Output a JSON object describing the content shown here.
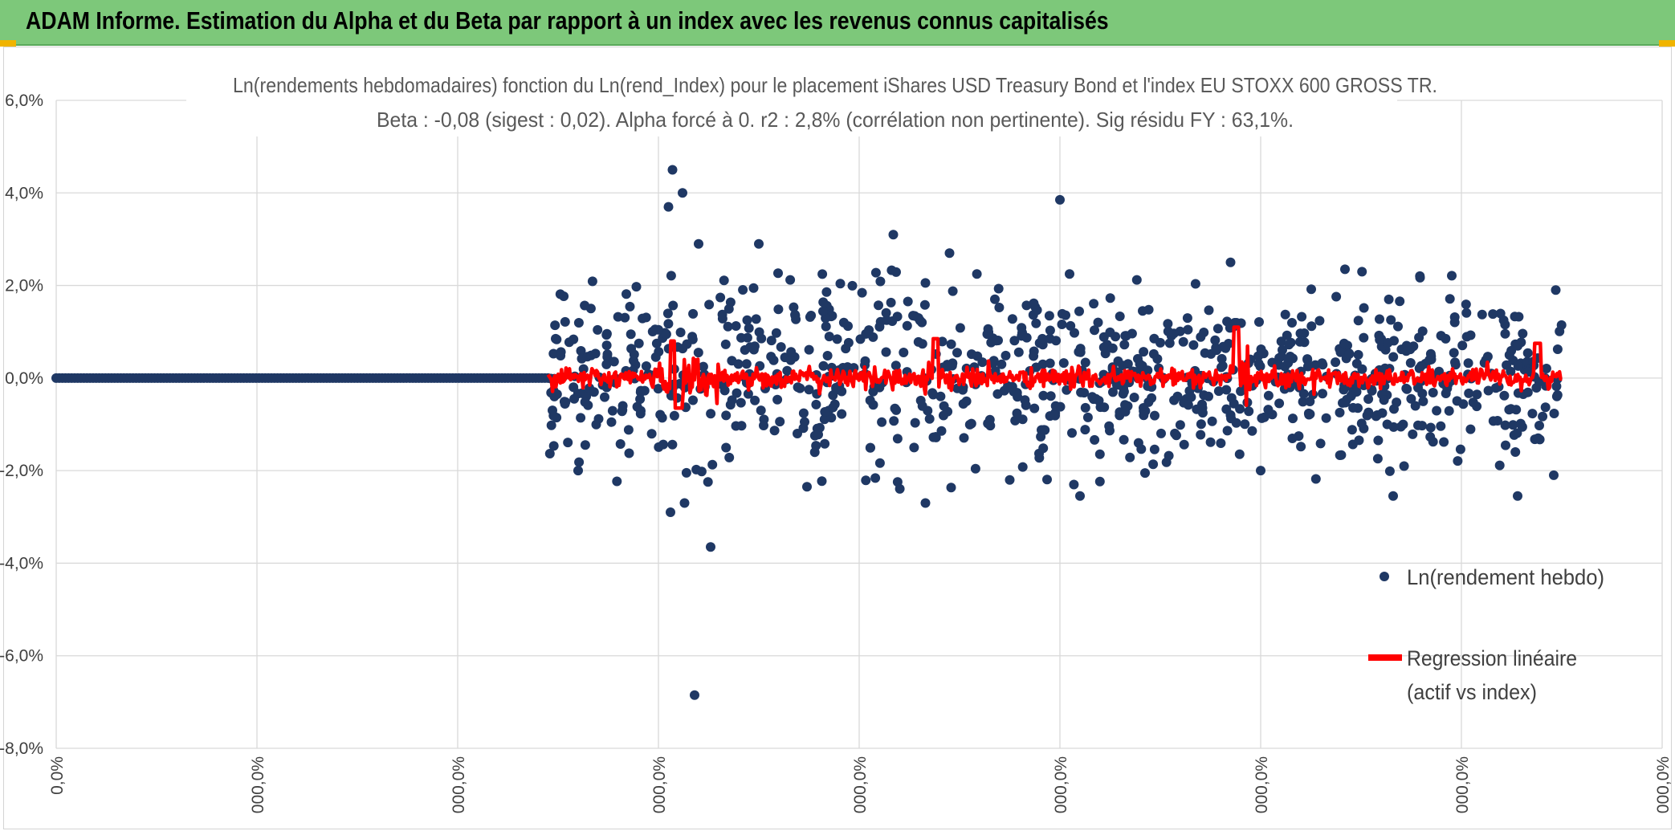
{
  "banner": {
    "title": "ADAM Informe. Estimation du Alpha et du Beta par rapport à un index avec les revenus connus capitalisés"
  },
  "chart_data": {
    "type": "scatter",
    "title": "Ln(rendements hebdomadaires) fonction du Ln(rend_Index) pour le placement iShares USD Treasury Bond et l'index EU STOXX 600 GROSS TR.",
    "subtitle": "Beta : -0,08 (sigest : 0,02). Alpha forcé à 0. r2 : 2,8% (corrélation non pertinente). Sig résidu FY : 63,1%.",
    "y_ticks": [
      "6,0%",
      "4,0%",
      "2,0%",
      "0,0%",
      "-2,0%",
      "-4,0%",
      "-6,0%",
      "-8,0%"
    ],
    "x_ticks": [
      "0,0%",
      "000,0%",
      "000,0%",
      "000,0%",
      "000,0%",
      "000,0%",
      "000,0%",
      "000,0%",
      "000,0%"
    ],
    "ylim": [
      -8,
      6
    ],
    "grid": true,
    "legend_position": "right",
    "series": [
      {
        "name": "Ln(rendement hebdo)",
        "color": "#1f3864",
        "marker": "dot"
      },
      {
        "name": "Regression linéaire (actif vs index)",
        "legend_lines": [
          "Regression linéaire",
          "(actif vs index)"
        ],
        "color": "#ff0000",
        "marker": "line"
      }
    ],
    "notes": {
      "x_domain_index": [
        0,
        8
      ],
      "flat_segment_end": 2.45,
      "scatter_end": 7.5,
      "point_count": 990,
      "dense_spread_pct": 0.9,
      "extreme_points": [
        [
          3.07,
          4.5
        ],
        [
          3.12,
          4.0
        ],
        [
          3.05,
          3.7
        ],
        [
          3.2,
          2.9
        ],
        [
          4.17,
          3.1
        ],
        [
          5.0,
          3.85
        ],
        [
          4.45,
          2.7
        ],
        [
          3.18,
          -6.85
        ],
        [
          3.26,
          -3.65
        ],
        [
          3.06,
          -2.9
        ],
        [
          3.13,
          -2.7
        ],
        [
          3.5,
          2.9
        ],
        [
          5.85,
          2.5
        ],
        [
          6.0,
          -2.0
        ],
        [
          4.33,
          -2.7
        ],
        [
          7.28,
          -2.55
        ],
        [
          6.42,
          2.35
        ],
        [
          2.6,
          -2.0
        ],
        [
          7.47,
          1.9
        ],
        [
          7.46,
          -2.1
        ],
        [
          4.75,
          -2.2
        ],
        [
          5.1,
          -2.55
        ],
        [
          6.66,
          -2.55
        ],
        [
          3.74,
          -2.35
        ]
      ]
    }
  }
}
